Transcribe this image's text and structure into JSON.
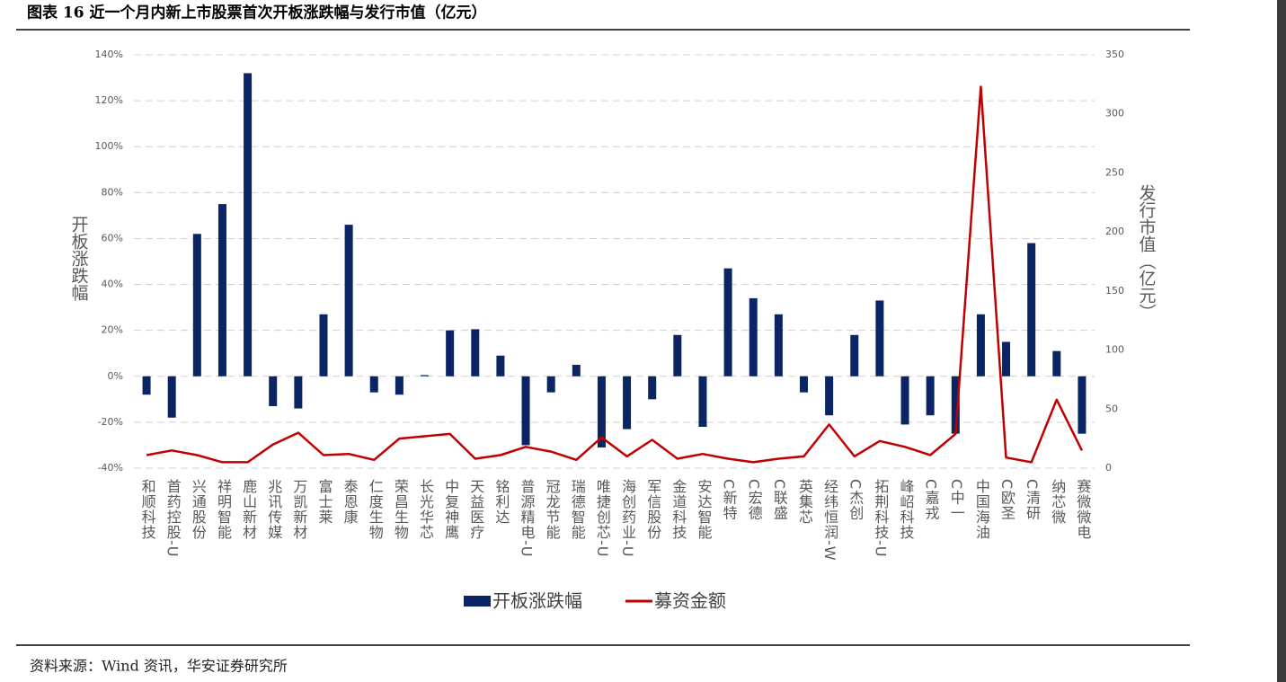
{
  "chart_data": {
    "type": "bar-line",
    "title": "图表 16 近一个月内新上市股票首次开板涨跌幅与发行市值（亿元）",
    "source": "资料来源：Wind 资讯，华安证券研究所",
    "y_label": "开板涨跌幅",
    "y2_label": "发行市值（亿元）",
    "categories": [
      "和顺科技",
      "首药控股-U",
      "兴通股份",
      "祥明智能",
      "鹿山新材",
      "兆讯传媒",
      "万凯新材",
      "富士莱",
      "泰恩康",
      "仁度生物",
      "荣昌生物",
      "长光华芯",
      "中复神鹰",
      "天益医疗",
      "铭利达",
      "普源精电-U",
      "冠龙节能",
      "瑞德智能",
      "唯捷创芯-U",
      "海创药业-U",
      "军信股份",
      "金道科技",
      "安达智能",
      "C新特",
      "C宏德",
      "C联盛",
      "英集芯",
      "经纬恒润-W",
      "C杰创",
      "拓荆科技-U",
      "峰岹科技",
      "C嘉戎",
      "C中一",
      "中国海油",
      "C欧圣",
      "C清研",
      "纳芯微",
      "赛微微电"
    ],
    "series": [
      {
        "name": "开板涨跌幅",
        "color": "#0b2463",
        "axis": "y",
        "values": [
          -8,
          -18,
          62,
          75,
          132,
          -13,
          -14,
          27,
          66,
          -7,
          -8,
          0.5,
          20,
          20.5,
          9,
          -30,
          -7,
          5,
          -31,
          -23,
          -10,
          18,
          -22,
          47,
          34,
          27,
          -7,
          -17,
          18,
          33,
          -21,
          -17,
          -25,
          27,
          15,
          58,
          11,
          -25
        ]
      },
      {
        "name": "募资金额",
        "color": "#c00000",
        "axis": "y2",
        "values": [
          11,
          15,
          11,
          5,
          5,
          20,
          30,
          11,
          12,
          7,
          25,
          27,
          29,
          8,
          11,
          18,
          14,
          7,
          26,
          10,
          24,
          8,
          12,
          8,
          5,
          8,
          10,
          37,
          10,
          23,
          18,
          11,
          29,
          323,
          9,
          5,
          58,
          15
        ]
      }
    ],
    "ylim": [
      -40,
      140
    ],
    "yticks": [
      {
        "value": -40,
        "label": "-40%"
      },
      {
        "value": -20,
        "label": "-20%"
      },
      {
        "value": 0,
        "label": "0%"
      },
      {
        "value": 20,
        "label": "20%"
      },
      {
        "value": 40,
        "label": "40%"
      },
      {
        "value": 60,
        "label": "60%"
      },
      {
        "value": 80,
        "label": "80%"
      },
      {
        "value": 100,
        "label": "100%"
      },
      {
        "value": 120,
        "label": "120%"
      },
      {
        "value": 140,
        "label": "140%"
      }
    ],
    "y2lim": [
      0,
      350
    ],
    "y2ticks": [
      0,
      50,
      100,
      150,
      200,
      250,
      300,
      350
    ],
    "grid": true,
    "legend": "bottom"
  }
}
